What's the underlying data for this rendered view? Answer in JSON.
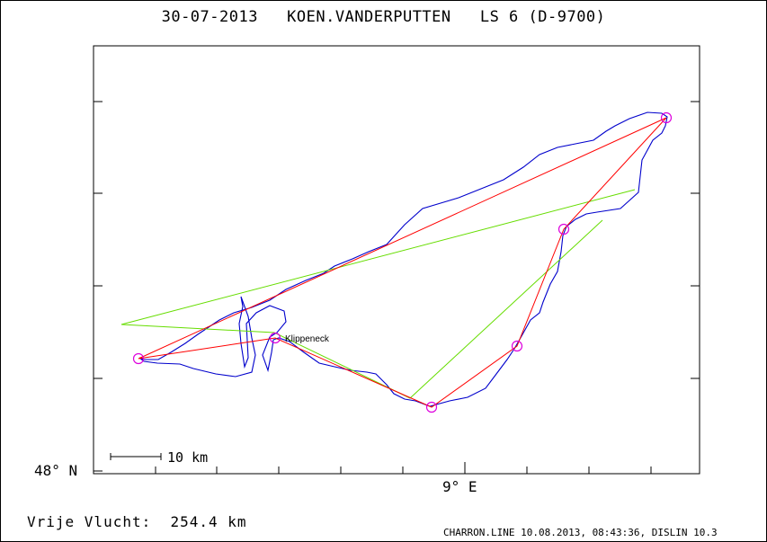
{
  "title": "30-07-2013   KOEN.VANDERPUTTEN   LS 6 (D-9700)",
  "axes": {
    "lat_label": "48° N",
    "lon_label": "9° E"
  },
  "scale_bar": {
    "label": "10 km"
  },
  "waypoint_label": "Klippeneck",
  "distance_text": "Vrije Vlucht:  254.4 km",
  "footer": "CHARRON.LINE 10.08.2013, 08:43:36, DISLIN 10.3",
  "colors": {
    "track": "#0000cc",
    "task_legs": "#ff0000",
    "alt_legs": "#66dd00",
    "turnpoints": "#dd00dd",
    "frame": "#000000"
  },
  "icons": {
    "turnpoint": "circle-marker",
    "takeoff": "circle-marker"
  }
}
